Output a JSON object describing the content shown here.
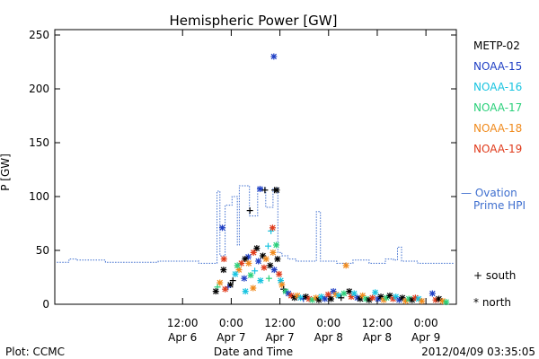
{
  "chart_data": {
    "type": "scatter",
    "title": "Hemispheric Power [GW]",
    "ylabel": "P [GW]",
    "xlabel": "Date and Time",
    "footer_left": "Plot: CCMC",
    "footer_right": "2012/04/09 03:35:05",
    "x_unit": "hours since 2012-04-05 00:00",
    "xlim": [
      4.5,
      103.5
    ],
    "ylim": [
      0,
      255
    ],
    "y_ticks": [
      0,
      50,
      100,
      150,
      200,
      250
    ],
    "x_ticks": [
      {
        "x": 36,
        "line1": "12:00",
        "line2": "Apr 6"
      },
      {
        "x": 48,
        "line1": "0:00",
        "line2": "Apr 7"
      },
      {
        "x": 60,
        "line1": "12:00",
        "line2": "Apr 7"
      },
      {
        "x": 72,
        "line1": "0:00",
        "line2": "Apr 8"
      },
      {
        "x": 84,
        "line1": "12:00",
        "line2": "Apr 8"
      },
      {
        "x": 96,
        "line1": "0:00",
        "line2": "Apr 9"
      }
    ],
    "series_legend": [
      {
        "name": "METP-02",
        "color": "#000000"
      },
      {
        "name": "NOAA-15",
        "color": "#1f3fc4"
      },
      {
        "name": "NOAA-16",
        "color": "#18c4e0"
      },
      {
        "name": "NOAA-17",
        "color": "#2ad07a"
      },
      {
        "name": "NOAA-18",
        "color": "#f08a1c"
      },
      {
        "name": "NOAA-19",
        "color": "#e03a1a"
      }
    ],
    "ovation_legend_line1": "— Ovation",
    "ovation_legend_line2": "Prime HPI",
    "ovation_color": "#3f6fcf",
    "marker_legend": [
      {
        "symbol": "+",
        "label": "south"
      },
      {
        "symbol": "*",
        "label": "north"
      }
    ],
    "ovation": [
      [
        5,
        39
      ],
      [
        8,
        39
      ],
      [
        8,
        42
      ],
      [
        10,
        42
      ],
      [
        10,
        41
      ],
      [
        17,
        41
      ],
      [
        17,
        39
      ],
      [
        30,
        39
      ],
      [
        30,
        40
      ],
      [
        40,
        40
      ],
      [
        40,
        38
      ],
      [
        44.5,
        38
      ],
      [
        44.5,
        105
      ],
      [
        45.2,
        105
      ],
      [
        45.2,
        45
      ],
      [
        46.5,
        45
      ],
      [
        46.5,
        92
      ],
      [
        48.2,
        92
      ],
      [
        48.2,
        100
      ],
      [
        49.5,
        100
      ],
      [
        49.5,
        55
      ],
      [
        50,
        55
      ],
      [
        50,
        110
      ],
      [
        52.5,
        110
      ],
      [
        52.5,
        82
      ],
      [
        54.5,
        82
      ],
      [
        54.5,
        108
      ],
      [
        56.5,
        108
      ],
      [
        56.5,
        90
      ],
      [
        58.3,
        90
      ],
      [
        58.3,
        108
      ],
      [
        59.5,
        108
      ],
      [
        59.5,
        48
      ],
      [
        60.5,
        48
      ],
      [
        60.5,
        45
      ],
      [
        62,
        45
      ],
      [
        62,
        42
      ],
      [
        64,
        42
      ],
      [
        64,
        40
      ],
      [
        69,
        40
      ],
      [
        69,
        86
      ],
      [
        70,
        86
      ],
      [
        70,
        40
      ],
      [
        74,
        40
      ],
      [
        74,
        38
      ],
      [
        78,
        38
      ],
      [
        78,
        41
      ],
      [
        82,
        41
      ],
      [
        82,
        38
      ],
      [
        86,
        38
      ],
      [
        86,
        42
      ],
      [
        88,
        42
      ],
      [
        88,
        41
      ],
      [
        89,
        41
      ],
      [
        89,
        53
      ],
      [
        90,
        53
      ],
      [
        90,
        40
      ],
      [
        94,
        40
      ],
      [
        94,
        38
      ],
      [
        103,
        38
      ]
    ],
    "points": [
      [
        45.8,
        71,
        1,
        "*"
      ],
      [
        58.5,
        230,
        1,
        "*"
      ],
      [
        52.6,
        87,
        0,
        "+"
      ],
      [
        55.1,
        107,
        1,
        "*"
      ],
      [
        56.3,
        106,
        0,
        "+"
      ],
      [
        59.2,
        106,
        0,
        "*"
      ],
      [
        58.7,
        106,
        0,
        "+"
      ],
      [
        57.1,
        54,
        2,
        "+"
      ],
      [
        57.8,
        68,
        2,
        "+"
      ],
      [
        58.2,
        71,
        5,
        "*"
      ],
      [
        55.8,
        45,
        0,
        "*"
      ],
      [
        54.3,
        52,
        0,
        "*"
      ],
      [
        53.5,
        48,
        5,
        "*"
      ],
      [
        52.2,
        44,
        1,
        "*"
      ],
      [
        51.4,
        42,
        0,
        "*"
      ],
      [
        50.5,
        38,
        5,
        "*"
      ],
      [
        49.9,
        32,
        4,
        "*"
      ],
      [
        49.5,
        36,
        3,
        "*"
      ],
      [
        49,
        28,
        2,
        "*"
      ],
      [
        48.4,
        22,
        0,
        "+"
      ],
      [
        47.8,
        18,
        0,
        "*"
      ],
      [
        47.2,
        16,
        1,
        "+"
      ],
      [
        46.5,
        14,
        5,
        "*"
      ],
      [
        46.1,
        32,
        0,
        "*"
      ],
      [
        46.2,
        42,
        5,
        "*"
      ],
      [
        45.2,
        20,
        4,
        "*"
      ],
      [
        44.6,
        16,
        3,
        "+"
      ],
      [
        44.2,
        12,
        0,
        "*"
      ],
      [
        51.5,
        12,
        2,
        "*"
      ],
      [
        51.2,
        24,
        1,
        "*"
      ],
      [
        52.3,
        38,
        4,
        "*"
      ],
      [
        52.8,
        27,
        3,
        "*"
      ],
      [
        53.4,
        15,
        4,
        "*"
      ],
      [
        53.8,
        31,
        2,
        "+"
      ],
      [
        54.7,
        40,
        1,
        "*"
      ],
      [
        55.2,
        22,
        2,
        "*"
      ],
      [
        56.1,
        34,
        5,
        "*"
      ],
      [
        56.6,
        42,
        4,
        "*"
      ],
      [
        57.3,
        24,
        3,
        "+"
      ],
      [
        57.6,
        36,
        0,
        "*"
      ],
      [
        58.3,
        48,
        4,
        "*"
      ],
      [
        58.6,
        32,
        1,
        "*"
      ],
      [
        59.1,
        55,
        3,
        "*"
      ],
      [
        59.4,
        42,
        0,
        "*"
      ],
      [
        59.8,
        28,
        5,
        "*"
      ],
      [
        60.2,
        22,
        2,
        "*"
      ],
      [
        60.5,
        18,
        4,
        "*"
      ],
      [
        60.9,
        14,
        0,
        "+"
      ],
      [
        61.4,
        12,
        3,
        "*"
      ],
      [
        62.1,
        10,
        1,
        "*"
      ],
      [
        62.8,
        8,
        5,
        "*"
      ],
      [
        63.6,
        6,
        0,
        "*"
      ],
      [
        64.3,
        8,
        4,
        "*"
      ],
      [
        65.1,
        6,
        2,
        "*"
      ],
      [
        65.8,
        5,
        1,
        "+"
      ],
      [
        66.4,
        7,
        0,
        "*"
      ],
      [
        67.2,
        5,
        5,
        "*"
      ],
      [
        68,
        4,
        3,
        "*"
      ],
      [
        68.9,
        6,
        4,
        "*"
      ],
      [
        69.6,
        4,
        0,
        "*"
      ],
      [
        70.2,
        7,
        2,
        "*"
      ],
      [
        71.1,
        5,
        1,
        "*"
      ],
      [
        71.9,
        9,
        5,
        "*"
      ],
      [
        72.6,
        5,
        0,
        "*"
      ],
      [
        73.2,
        12,
        1,
        "*"
      ],
      [
        73.8,
        9,
        4,
        "*"
      ],
      [
        74.5,
        8,
        2,
        "*"
      ],
      [
        75.1,
        6,
        0,
        "+"
      ],
      [
        76.3,
        36,
        4,
        "*"
      ],
      [
        75.8,
        10,
        3,
        "*"
      ],
      [
        77.1,
        12,
        0,
        "*"
      ],
      [
        77.6,
        7,
        5,
        "*"
      ],
      [
        78.3,
        10,
        2,
        "*"
      ],
      [
        79.1,
        6,
        1,
        "*"
      ],
      [
        79.8,
        5,
        0,
        "*"
      ],
      [
        80.4,
        8,
        4,
        "*"
      ],
      [
        81.2,
        5,
        3,
        "*"
      ],
      [
        82,
        4,
        0,
        "*"
      ],
      [
        82.8,
        6,
        5,
        "*"
      ],
      [
        83.5,
        11,
        2,
        "*"
      ],
      [
        84.2,
        5,
        1,
        "*"
      ],
      [
        84.9,
        7,
        0,
        "*"
      ],
      [
        85.6,
        4,
        4,
        "*"
      ],
      [
        86.3,
        6,
        3,
        "*"
      ],
      [
        87.1,
        8,
        0,
        "*"
      ],
      [
        87.9,
        5,
        5,
        "*"
      ],
      [
        88.6,
        7,
        2,
        "*"
      ],
      [
        89.4,
        4,
        1,
        "*"
      ],
      [
        90.2,
        6,
        0,
        "*"
      ],
      [
        91,
        3,
        4,
        "*"
      ],
      [
        91.8,
        5,
        3,
        "*"
      ],
      [
        92.6,
        4,
        0,
        "*"
      ],
      [
        93.4,
        6,
        5,
        "*"
      ],
      [
        94.2,
        5,
        2,
        "*"
      ],
      [
        95,
        3,
        4,
        "*"
      ],
      [
        97.6,
        10,
        1,
        "*"
      ],
      [
        98.4,
        4,
        5,
        "*"
      ],
      [
        99.2,
        5,
        0,
        "*"
      ],
      [
        100.1,
        3,
        4,
        "*"
      ],
      [
        101,
        2,
        3,
        "*"
      ]
    ]
  }
}
